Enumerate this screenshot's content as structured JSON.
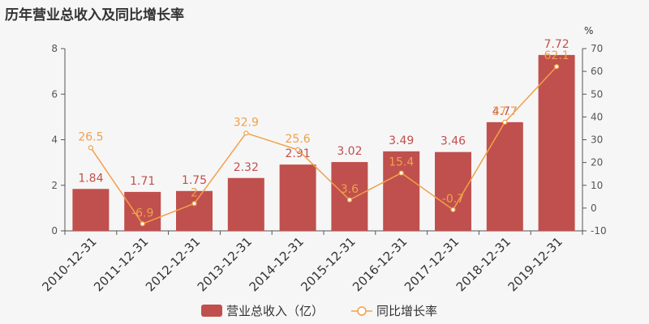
{
  "title": "历年营业总收入及同比增长率",
  "colors": {
    "bar": "#c0504d",
    "line": "#f0a04b",
    "axis": "#555555",
    "background": "#f7f6f6"
  },
  "chart_data": {
    "type": "bar",
    "title": "历年营业总收入及同比增长率",
    "categories": [
      "2010-12-31",
      "2011-12-31",
      "2012-12-31",
      "2013-12-31",
      "2014-12-31",
      "2015-12-31",
      "2016-12-31",
      "2017-12-31",
      "2018-12-31",
      "2019-12-31"
    ],
    "series": [
      {
        "name": "营业总收入（亿）",
        "type": "bar",
        "axis": "left",
        "values": [
          1.84,
          1.71,
          1.75,
          2.32,
          2.91,
          3.02,
          3.49,
          3.46,
          4.77,
          7.72
        ]
      },
      {
        "name": "同比增长率",
        "type": "line",
        "axis": "right",
        "values": [
          26.5,
          -6.9,
          2,
          32.9,
          25.6,
          3.6,
          15.4,
          -0.7,
          37.7,
          62.1
        ]
      }
    ],
    "y_left": {
      "min": 0,
      "max": 8,
      "ticks": [
        0,
        2,
        4,
        6,
        8
      ]
    },
    "y_right": {
      "min": -10,
      "max": 70,
      "ticks": [
        -10,
        0,
        10,
        20,
        30,
        40,
        50,
        60,
        70
      ],
      "unit": "%"
    },
    "grid": false,
    "legend": "bottom-center"
  }
}
